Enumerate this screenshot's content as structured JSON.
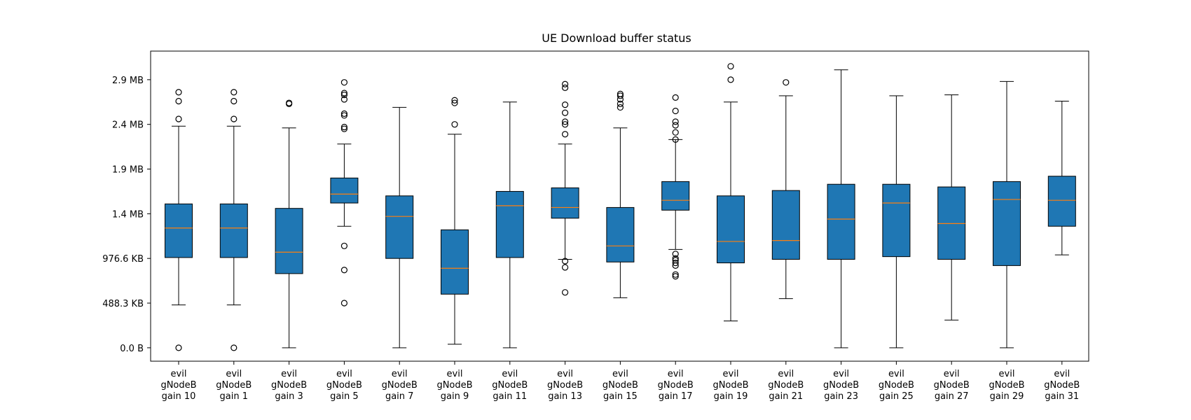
{
  "chart_data": {
    "type": "box",
    "title": "UE Download buffer status",
    "xlabel": "",
    "ylabel": "",
    "y_unit": "bytes",
    "ylim": [
      -150000,
      3320000
    ],
    "grid": false,
    "legend": "none",
    "colors": {
      "box_fill": "#1f77b4",
      "median": "#ff7f0e",
      "line": "#000000"
    },
    "y_ticks": [
      {
        "value": 0,
        "label": "0.0 B"
      },
      {
        "value": 500000,
        "label": "488.3 KB"
      },
      {
        "value": 1000000,
        "label": "976.6 KB"
      },
      {
        "value": 1500000,
        "label": "1.4 MB"
      },
      {
        "value": 2000000,
        "label": "1.9 MB"
      },
      {
        "value": 2500000,
        "label": "2.4 MB"
      },
      {
        "value": 3000000,
        "label": "2.9 MB"
      }
    ],
    "categories": [
      [
        "evil",
        "gNodeB",
        "gain 10"
      ],
      [
        "evil",
        "gNodeB",
        "gain 1"
      ],
      [
        "evil",
        "gNodeB",
        "gain 3"
      ],
      [
        "evil",
        "gNodeB",
        "gain 5"
      ],
      [
        "evil",
        "gNodeB",
        "gain 7"
      ],
      [
        "evil",
        "gNodeB",
        "gain 9"
      ],
      [
        "evil",
        "gNodeB",
        "gain 11"
      ],
      [
        "evil",
        "gNodeB",
        "gain 13"
      ],
      [
        "evil",
        "gNodeB",
        "gain 15"
      ],
      [
        "evil",
        "gNodeB",
        "gain 17"
      ],
      [
        "evil",
        "gNodeB",
        "gain 19"
      ],
      [
        "evil",
        "gNodeB",
        "gain 21"
      ],
      [
        "evil",
        "gNodeB",
        "gain 23"
      ],
      [
        "evil",
        "gNodeB",
        "gain 25"
      ],
      [
        "evil",
        "gNodeB",
        "gain 27"
      ],
      [
        "evil",
        "gNodeB",
        "gain 29"
      ],
      [
        "evil",
        "gNodeB",
        "gain 31"
      ]
    ],
    "boxes": [
      {
        "whislo": 480000,
        "q1": 1010000,
        "med": 1340000,
        "q3": 1610000,
        "whishi": 2480000,
        "fliers": [
          0,
          2560000,
          2760000,
          2860000
        ]
      },
      {
        "whislo": 480000,
        "q1": 1010000,
        "med": 1340000,
        "q3": 1610000,
        "whishi": 2480000,
        "fliers": [
          0,
          2560000,
          2760000,
          2860000
        ]
      },
      {
        "whislo": 0,
        "q1": 830000,
        "med": 1070000,
        "q3": 1560000,
        "whishi": 2460000,
        "fliers": [
          2730000,
          2740000
        ]
      },
      {
        "whislo": 1360000,
        "q1": 1620000,
        "med": 1720000,
        "q3": 1900000,
        "whishi": 2280000,
        "fliers": [
          500000,
          870000,
          1140000,
          2450000,
          2470000,
          2600000,
          2620000,
          2780000,
          2830000,
          2850000,
          2970000
        ]
      },
      {
        "whislo": 0,
        "q1": 1000000,
        "med": 1470000,
        "q3": 1700000,
        "whishi": 2690000,
        "fliers": []
      },
      {
        "whislo": 40000,
        "q1": 600000,
        "med": 890000,
        "q3": 1320000,
        "whishi": 2390000,
        "fliers": [
          2500000,
          2740000,
          2770000
        ]
      },
      {
        "whislo": 0,
        "q1": 1010000,
        "med": 1590000,
        "q3": 1750000,
        "whishi": 2750000,
        "fliers": []
      },
      {
        "whislo": 990000,
        "q1": 1450000,
        "med": 1570000,
        "q3": 1790000,
        "whishi": 2280000,
        "fliers": [
          620000,
          900000,
          970000,
          2390000,
          2500000,
          2530000,
          2630000,
          2720000,
          2910000,
          2950000
        ]
      },
      {
        "whislo": 560000,
        "q1": 960000,
        "med": 1140000,
        "q3": 1570000,
        "whishi": 2460000,
        "fliers": [
          2690000,
          2730000,
          2780000,
          2820000,
          2840000
        ]
      },
      {
        "whislo": 1100000,
        "q1": 1540000,
        "med": 1650000,
        "q3": 1860000,
        "whishi": 2330000,
        "fliers": [
          800000,
          820000,
          920000,
          950000,
          980000,
          1000000,
          1050000,
          2330000,
          2410000,
          2490000,
          2530000,
          2650000,
          2800000
        ]
      },
      {
        "whislo": 300000,
        "q1": 950000,
        "med": 1190000,
        "q3": 1700000,
        "whishi": 2750000,
        "fliers": [
          3000000,
          3150000
        ]
      },
      {
        "whislo": 550000,
        "q1": 990000,
        "med": 1200000,
        "q3": 1760000,
        "whishi": 2820000,
        "fliers": [
          2970000
        ]
      },
      {
        "whislo": 0,
        "q1": 990000,
        "med": 1440000,
        "q3": 1830000,
        "whishi": 3110000,
        "fliers": []
      },
      {
        "whislo": 0,
        "q1": 1020000,
        "med": 1620000,
        "q3": 1830000,
        "whishi": 2820000,
        "fliers": []
      },
      {
        "whislo": 310000,
        "q1": 990000,
        "med": 1390000,
        "q3": 1800000,
        "whishi": 2830000,
        "fliers": []
      },
      {
        "whislo": 0,
        "q1": 920000,
        "med": 1660000,
        "q3": 1860000,
        "whishi": 2980000,
        "fliers": []
      },
      {
        "whislo": 1040000,
        "q1": 1360000,
        "med": 1650000,
        "q3": 1920000,
        "whishi": 2760000,
        "fliers": []
      }
    ]
  }
}
